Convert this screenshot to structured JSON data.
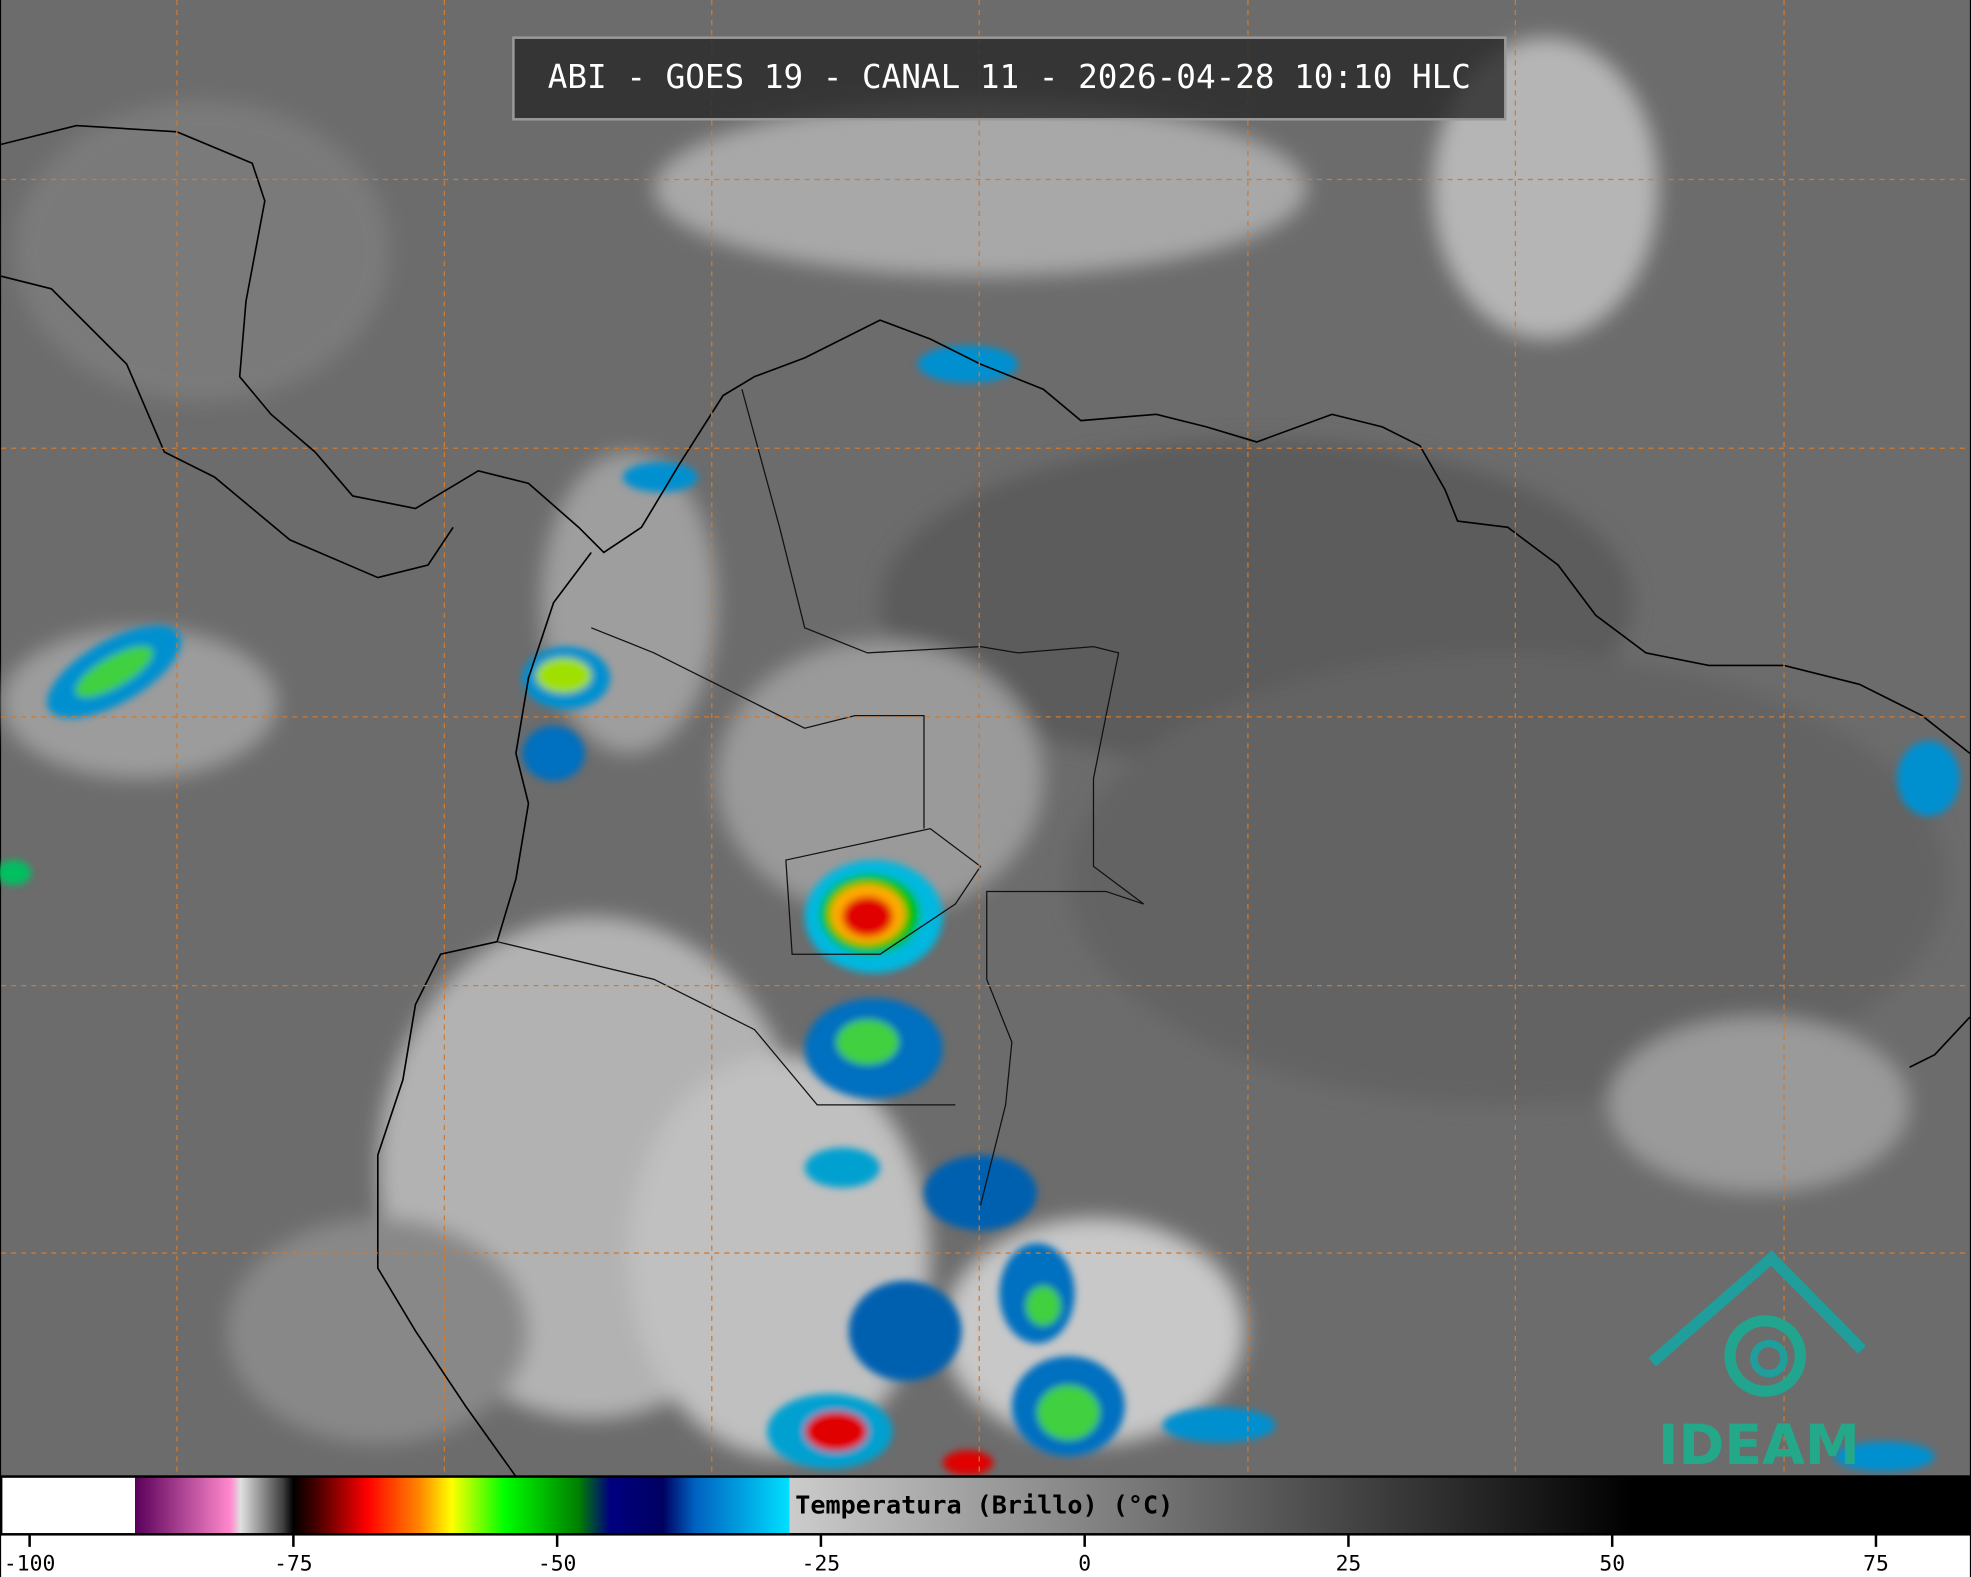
{
  "header": {
    "title": "ABI - GOES 19 - CANAL 11 - 2026-04-28 10:10 HLC"
  },
  "colorbar": {
    "label": "Temperatura (Brillo) (°C)",
    "range": [
      -102.7,
      83.9
    ],
    "ticks": [
      -100,
      -75,
      -50,
      -25,
      0,
      25,
      50,
      75
    ],
    "stops": [
      {
        "value": -90,
        "color": "#ffffff"
      },
      {
        "value": -90,
        "color": "#5a005a"
      },
      {
        "value": -81,
        "color": "#ff88cc"
      },
      {
        "value": -80,
        "color": "#e0e0e0"
      },
      {
        "value": -76,
        "color": "#404040"
      },
      {
        "value": -75,
        "color": "#000000"
      },
      {
        "value": -73,
        "color": "#400000"
      },
      {
        "value": -68,
        "color": "#ff0000"
      },
      {
        "value": -63,
        "color": "#ff8800"
      },
      {
        "value": -60,
        "color": "#ffff00"
      },
      {
        "value": -55,
        "color": "#00ff00"
      },
      {
        "value": -48,
        "color": "#008000"
      },
      {
        "value": -45,
        "color": "#000080"
      },
      {
        "value": -40,
        "color": "#000060"
      },
      {
        "value": -37,
        "color": "#0060c0"
      },
      {
        "value": -28,
        "color": "#00e0ff"
      },
      {
        "value": -28,
        "color": "#cccccc"
      },
      {
        "value": 52,
        "color": "#000000"
      }
    ]
  },
  "logo": {
    "text": "IDEAM"
  }
}
